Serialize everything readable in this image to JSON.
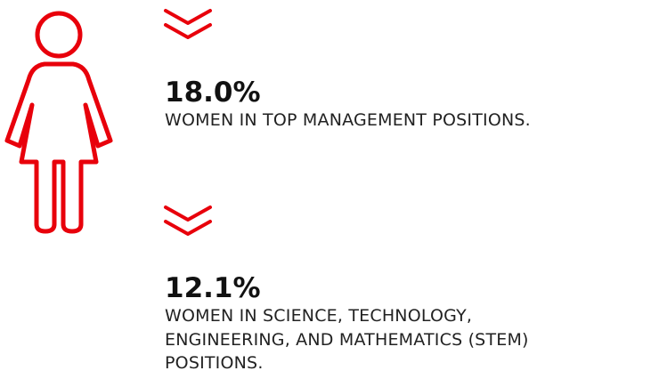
{
  "stats": [
    {
      "value": "18.0%",
      "lines": [
        "WOMEN IN TOP MANAGEMENT POSITIONS."
      ]
    },
    {
      "value": "12.1%",
      "lines": [
        "WOMEN IN SCIENCE, TECHNOLOGY,",
        "ENGINEERING, AND MATHEMATICS (STEM)",
        "POSITIONS."
      ]
    }
  ]
}
